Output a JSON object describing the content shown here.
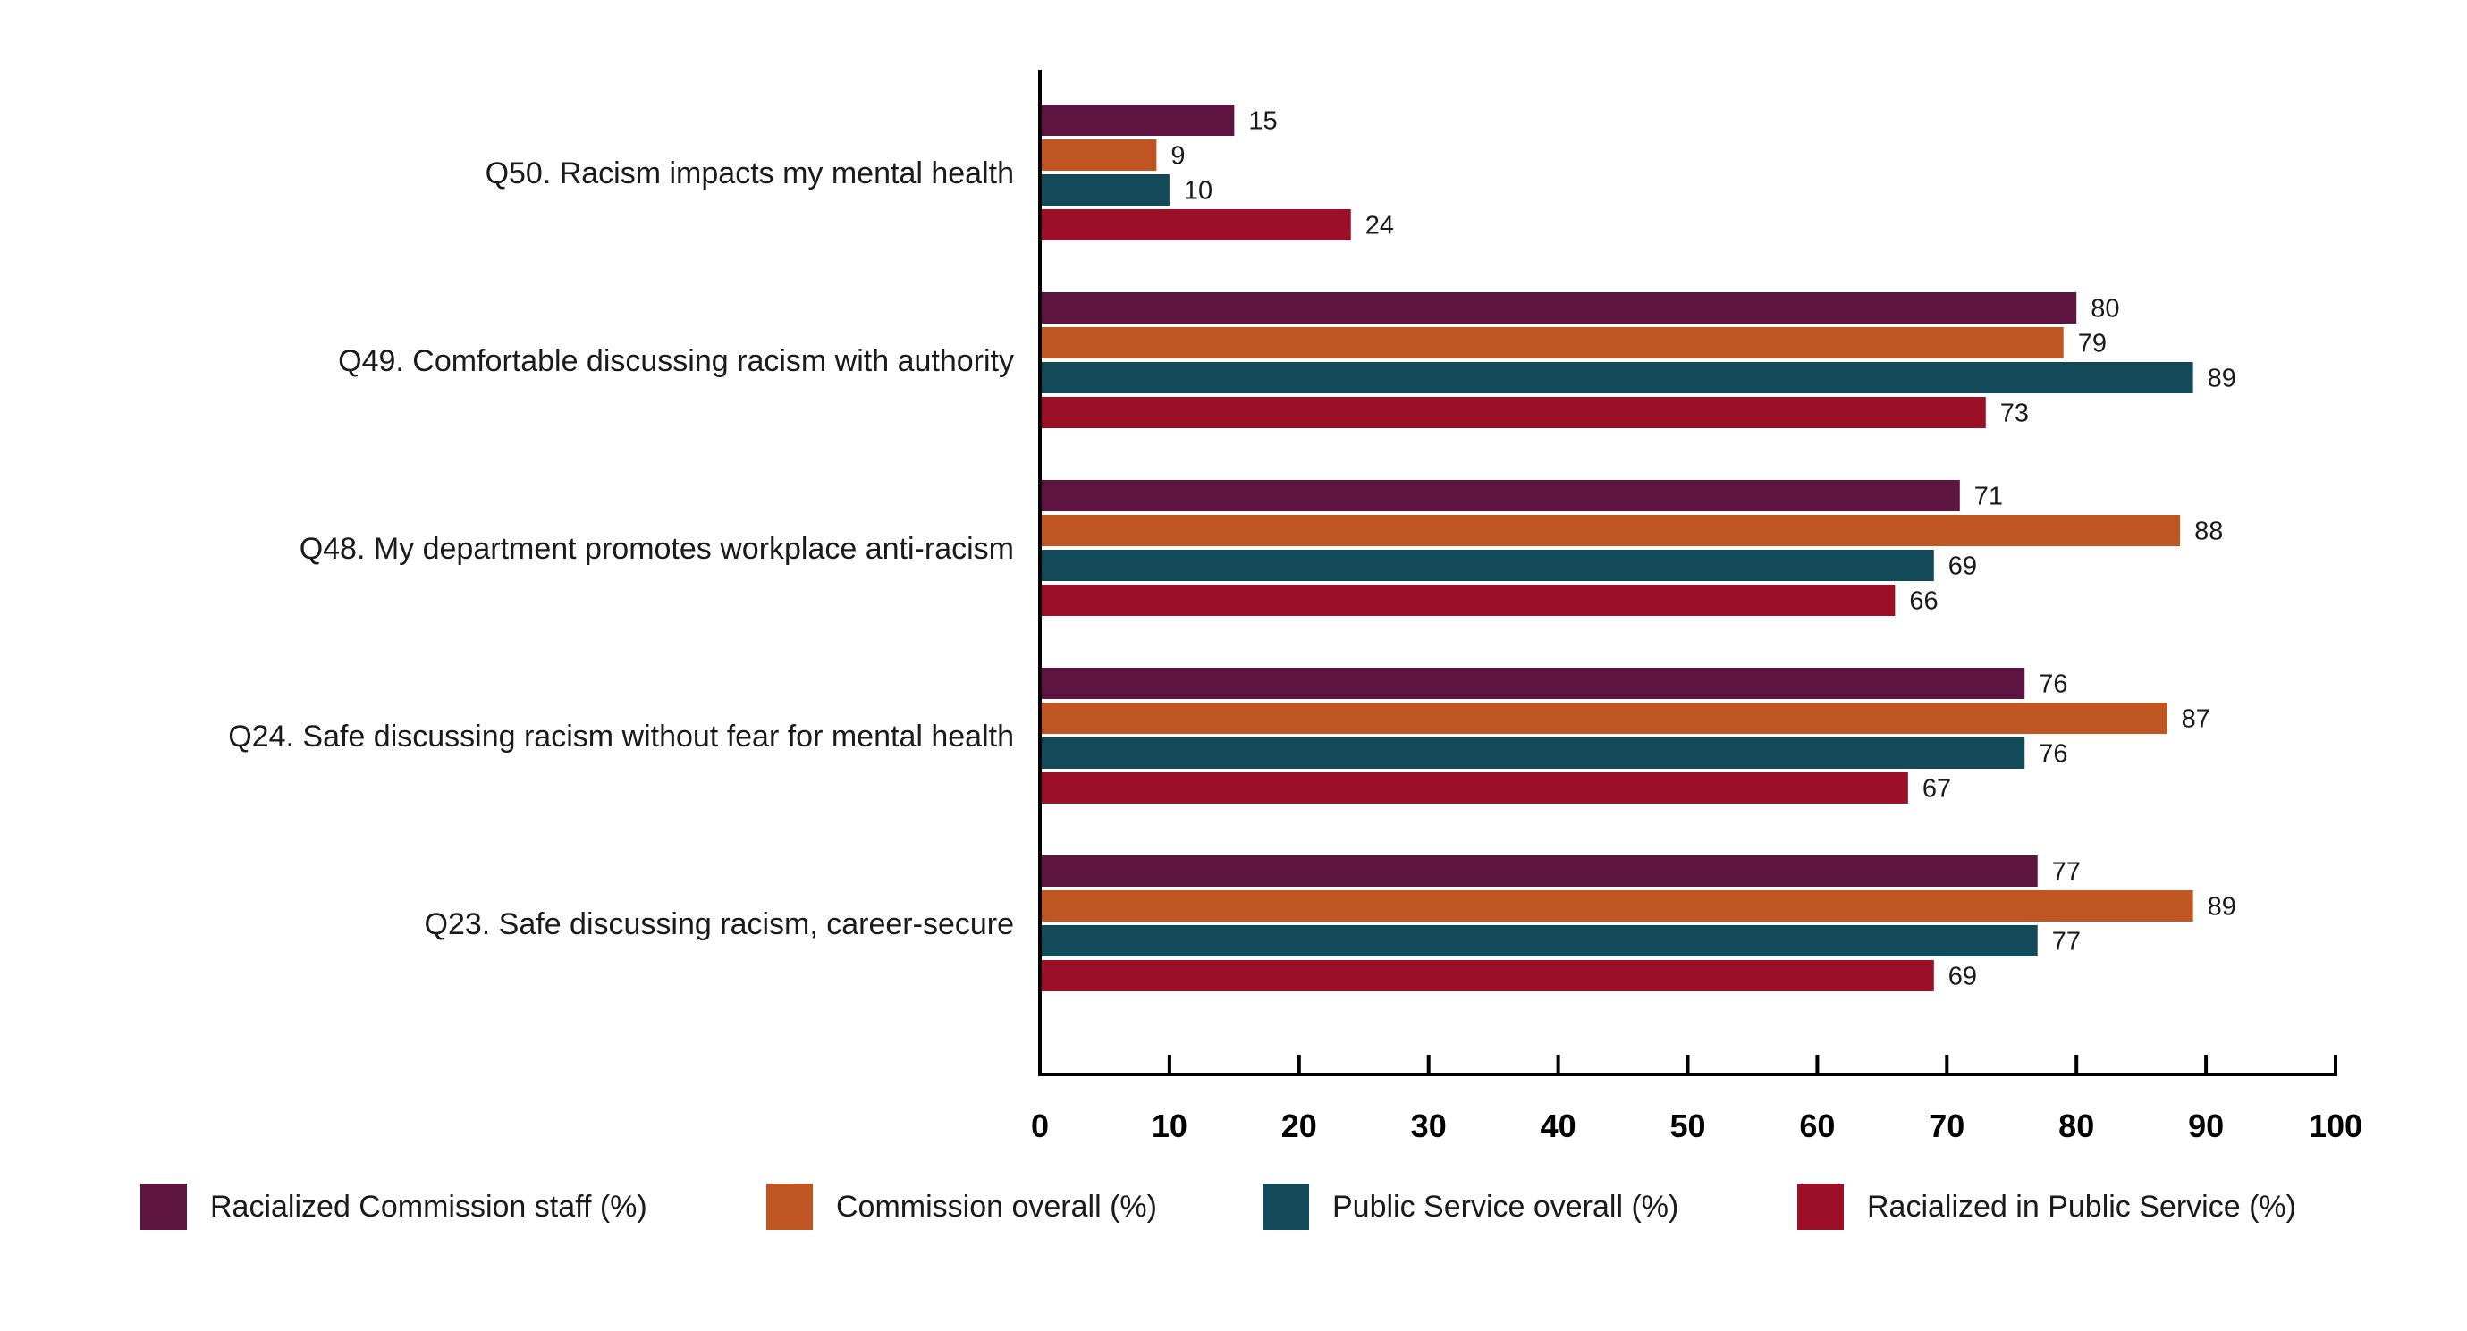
{
  "chart_data": {
    "type": "bar",
    "orientation": "horizontal",
    "categories": [
      "Q50. Racism impacts my mental health",
      "Q49. Comfortable discussing racism with authority",
      "Q48. My department promotes workplace anti-racism",
      "Q24. Safe discussing racism without fear for mental health",
      "Q23. Safe discussing racism, career-secure"
    ],
    "series": [
      {
        "name": "Racialized Commission staff (%)",
        "color": "#5e1440",
        "values": [
          15,
          80,
          71,
          76,
          77
        ]
      },
      {
        "name": "Commission overall (%)",
        "color": "#c05621",
        "values": [
          9,
          79,
          88,
          87,
          89
        ]
      },
      {
        "name": "Public Service overall (%)",
        "color": "#124a5a",
        "values": [
          10,
          89,
          69,
          76,
          77
        ]
      },
      {
        "name": "Racialized in Public Service (%)",
        "color": "#9b1026",
        "values": [
          24,
          73,
          66,
          67,
          69
        ]
      }
    ],
    "xlim": [
      0,
      100
    ],
    "xticks": [
      "0",
      "10",
      "20",
      "30",
      "40",
      "50",
      "60",
      "70",
      "80",
      "90",
      "100"
    ],
    "title": "",
    "xlabel": "",
    "ylabel": "",
    "legend_position": "bottom"
  }
}
